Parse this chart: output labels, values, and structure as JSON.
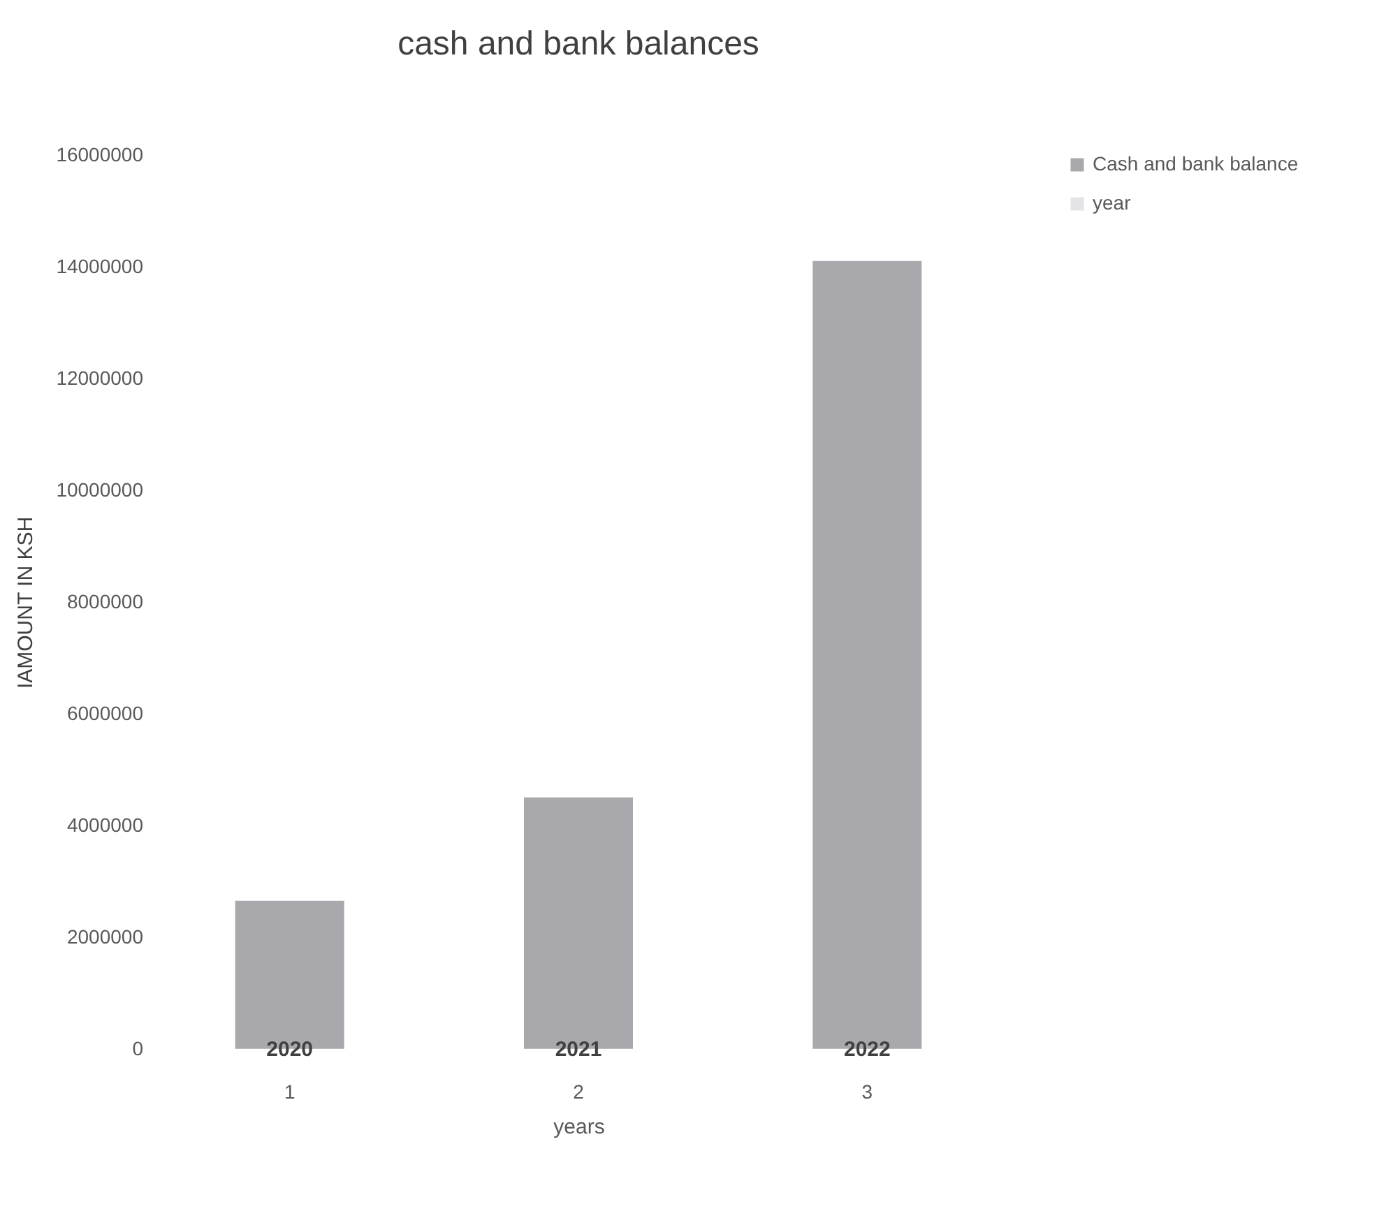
{
  "chart_data": {
    "type": "bar",
    "title": "cash and bank balances",
    "xlabel": "years",
    "ylabel": "IAMOUNT IN KSH",
    "categories": [
      "1",
      "2",
      "3"
    ],
    "stacked": true,
    "series": [
      {
        "name": "year",
        "color": "#e4e4e8",
        "values": [
          2020,
          2021,
          2022
        ],
        "value_labels": [
          "2020",
          "2021",
          "2022"
        ]
      },
      {
        "name": "Cash and bank balance",
        "color": "#a9a9ad",
        "values": [
          2650000,
          4500000,
          14100000
        ]
      }
    ],
    "ylim": [
      0,
      16000000
    ],
    "yticks": [
      0,
      2000000,
      4000000,
      6000000,
      8000000,
      10000000,
      12000000,
      14000000,
      16000000
    ],
    "grid": false,
    "legend": "right"
  }
}
